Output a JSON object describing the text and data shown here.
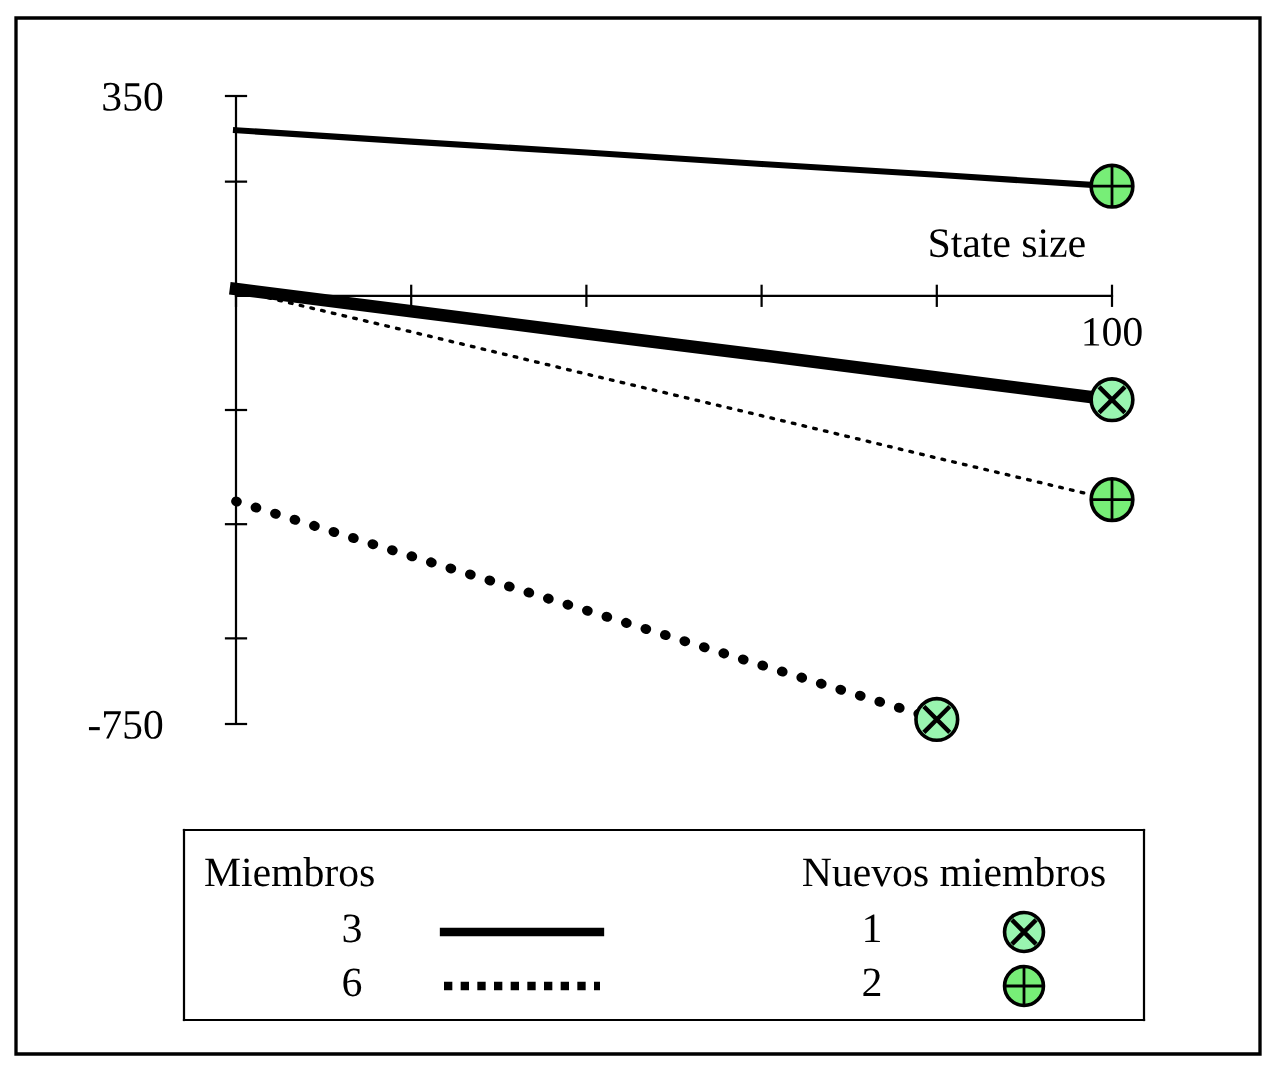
{
  "chart_data": {
    "type": "line",
    "xlabel": "State size",
    "categories": [
      null,
      null,
      null,
      null,
      null,
      "100"
    ],
    "ylim": [
      -750,
      350
    ],
    "yticks": [
      350,
      {
        "value": 200,
        "label": null
      },
      {
        "value": -200,
        "label": null
      },
      {
        "value": -400,
        "label": null
      },
      {
        "value": -600,
        "label": null
      },
      -750
    ],
    "series": [
      {
        "color": "#000000",
        "values": [
          290,
          270,
          251,
          231,
          212,
          192
        ],
        "line_style": "solid",
        "colors": [
          "#000000",
          "#000000",
          "#000000",
          "#000000",
          "#000000",
          "#77ee77"
        ]
      },
      {
        "color": "#000000",
        "values": [
          12,
          -27,
          -66,
          -104,
          -143,
          -182
        ],
        "line_style": "solid",
        "colors": [
          "#000000",
          "#000000",
          "#000000",
          "#000000",
          "#000000",
          "#99f5b0"
        ]
      },
      {
        "color": "#000000",
        "values": [
          10,
          -63,
          -137,
          -210,
          -284,
          -357
        ],
        "line_style": "dotted",
        "colors": [
          "#000000",
          "#000000",
          "#000000",
          "#000000",
          "#000000",
          "#77ee77"
        ]
      },
      {
        "color": "#000000",
        "values": [
          -360,
          -456,
          -551,
          -647,
          -742,
          null
        ],
        "line_style": "dotted",
        "colors": [
          "#000000",
          "#000000",
          "#000000",
          "#000000",
          "#99f5b0",
          null
        ]
      }
    ],
    "annotations": [
      "Miembros",
      "3",
      "6",
      "Nuevos miembros",
      "1",
      "2"
    ]
  }
}
